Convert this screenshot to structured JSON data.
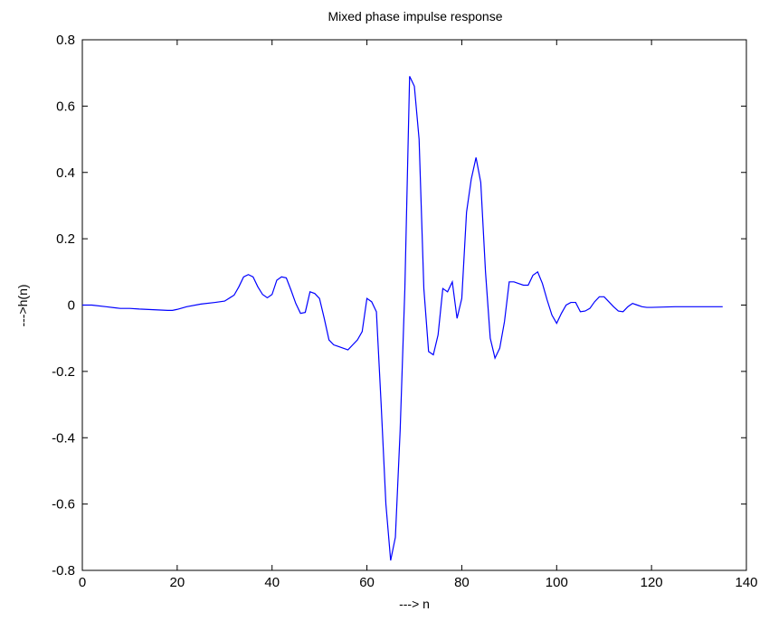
{
  "chart_data": {
    "type": "line",
    "title": "Mixed phase impulse response",
    "xlabel": "---> n",
    "ylabel": "--->h(n)",
    "xlim": [
      0,
      140
    ],
    "ylim": [
      -0.8,
      0.8
    ],
    "xticks": [
      0,
      20,
      40,
      60,
      80,
      100,
      120,
      140
    ],
    "yticks": [
      -0.8,
      -0.6,
      -0.4,
      -0.2,
      0,
      0.2,
      0.4,
      0.6,
      0.8
    ],
    "xtick_labels": [
      "0",
      "20",
      "40",
      "60",
      "80",
      "100",
      "120",
      "140"
    ],
    "ytick_labels": [
      "-0.8",
      "-0.6",
      "-0.4",
      "-0.2",
      "0",
      "0.2",
      "0.4",
      "0.6",
      "0.8"
    ],
    "grid": false,
    "colors": {
      "line": "#0000ff",
      "axes": "#000000"
    },
    "series": [
      {
        "x": [
          0,
          2,
          5,
          8,
          10,
          12,
          15,
          18,
          19,
          20,
          22,
          25,
          28,
          30,
          32,
          33,
          34,
          35,
          36,
          37,
          38,
          39,
          40,
          41,
          42,
          43,
          44,
          45,
          46,
          47,
          48,
          49,
          50,
          51,
          52,
          53,
          54,
          55,
          56,
          57,
          58,
          59,
          60,
          61,
          62,
          63,
          64,
          65,
          66,
          67,
          68,
          69,
          70,
          71,
          72,
          73,
          74,
          75,
          76,
          77,
          78,
          79,
          80,
          81,
          82,
          83,
          84,
          85,
          86,
          87,
          88,
          89,
          90,
          91,
          92,
          93,
          94,
          95,
          96,
          97,
          98,
          99,
          100,
          101,
          102,
          103,
          104,
          105,
          106,
          107,
          108,
          109,
          110,
          111,
          112,
          113,
          114,
          115,
          116,
          117,
          118,
          119,
          120,
          125,
          130,
          135
        ],
        "y": [
          0,
          0,
          -0.005,
          -0.01,
          -0.01,
          -0.012,
          -0.014,
          -0.016,
          -0.016,
          -0.013,
          -0.005,
          0.003,
          0.008,
          0.012,
          0.03,
          0.055,
          0.085,
          0.092,
          0.085,
          0.055,
          0.032,
          0.022,
          0.032,
          0.075,
          0.085,
          0.082,
          0.045,
          0.005,
          -0.025,
          -0.022,
          0.04,
          0.035,
          0.02,
          -0.04,
          -0.105,
          -0.12,
          -0.125,
          -0.13,
          -0.135,
          -0.12,
          -0.105,
          -0.08,
          0.02,
          0.01,
          -0.02,
          -0.3,
          -0.6,
          -0.77,
          -0.7,
          -0.38,
          0.05,
          0.69,
          0.66,
          0.5,
          0.05,
          -0.14,
          -0.15,
          -0.09,
          0.05,
          0.04,
          0.07,
          -0.04,
          0.02,
          0.28,
          0.38,
          0.445,
          0.37,
          0.1,
          -0.1,
          -0.16,
          -0.13,
          -0.05,
          0.07,
          0.07,
          0.065,
          0.06,
          0.06,
          0.09,
          0.1,
          0.065,
          0.015,
          -0.03,
          -0.055,
          -0.025,
          0.0,
          0.008,
          0.008,
          -0.02,
          -0.018,
          -0.01,
          0.01,
          0.025,
          0.025,
          0.01,
          -0.005,
          -0.018,
          -0.02,
          -0.005,
          0.005,
          0.0,
          -0.005,
          -0.007,
          -0.007,
          -0.005,
          -0.005,
          -0.005
        ]
      }
    ]
  }
}
